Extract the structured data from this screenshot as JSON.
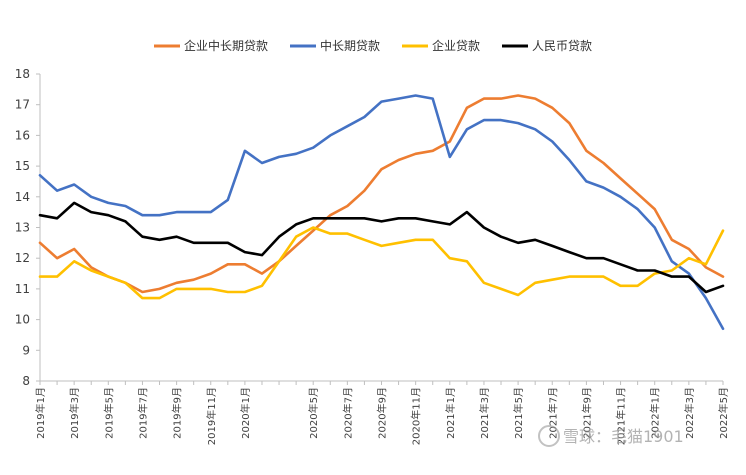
{
  "chart_data": {
    "type": "line",
    "title": "",
    "xlabel": "",
    "ylabel": "",
    "ylim": [
      8,
      18
    ],
    "yticks": [
      "8",
      "9",
      "10",
      "11",
      "12",
      "13",
      "14",
      "15",
      "16",
      "17",
      "18"
    ],
    "grid": false,
    "legend_position": "top",
    "categories": [
      "2019年1月",
      "2019年2月",
      "2019年3月",
      "2019年4月",
      "2019年5月",
      "2019年6月",
      "2019年7月",
      "2019年8月",
      "2019年9月",
      "2019年10月",
      "2019年11月",
      "2019年12月",
      "2020年1月",
      "2020年2月",
      "2020年3月",
      "2020年4月",
      "2020年5月",
      "2020年6月",
      "2020年7月",
      "2020年8月",
      "2020年9月",
      "2020年10月",
      "2020年11月",
      "2020年12月",
      "2021年1月",
      "2021年2月",
      "2021年3月",
      "2021年4月",
      "2021年5月",
      "2021年6月",
      "2021年7月",
      "2021年8月",
      "2021年9月",
      "2021年10月",
      "2021年11月",
      "2021年12月",
      "2022年1月",
      "2022年2月",
      "2022年3月",
      "2022年4月",
      "2022年5月"
    ],
    "x_tick_labels": [
      {
        "i": 0,
        "label": "2019年1月"
      },
      {
        "i": 2,
        "label": "2019年3月"
      },
      {
        "i": 4,
        "label": "2019年5月"
      },
      {
        "i": 6,
        "label": "2019年7月"
      },
      {
        "i": 8,
        "label": "2019年9月"
      },
      {
        "i": 10,
        "label": "2019年11月"
      },
      {
        "i": 12,
        "label": "2020年1月"
      },
      {
        "i": 16,
        "label": "2020年5月"
      },
      {
        "i": 18,
        "label": "2020年7月"
      },
      {
        "i": 20,
        "label": "2020年9月"
      },
      {
        "i": 22,
        "label": "2020年11月"
      },
      {
        "i": 24,
        "label": "2021年1月"
      },
      {
        "i": 26,
        "label": "2021年3月"
      },
      {
        "i": 28,
        "label": "2021年5月"
      },
      {
        "i": 30,
        "label": "2021年7月"
      },
      {
        "i": 32,
        "label": "2021年9月"
      },
      {
        "i": 34,
        "label": "2021年11月"
      },
      {
        "i": 36,
        "label": "2022年1月"
      },
      {
        "i": 38,
        "label": "2022年3月"
      },
      {
        "i": 40,
        "label": "2022年5月"
      }
    ],
    "series": [
      {
        "name": "企业中长期贷款",
        "color": "#ED7D31",
        "values": [
          12.5,
          12.0,
          12.3,
          11.7,
          11.4,
          11.2,
          10.9,
          11.0,
          11.2,
          11.3,
          11.5,
          11.8,
          11.8,
          11.5,
          11.9,
          12.4,
          12.9,
          13.4,
          13.7,
          14.2,
          14.9,
          15.2,
          15.4,
          15.5,
          15.8,
          16.9,
          17.2,
          17.2,
          17.3,
          17.2,
          16.9,
          16.4,
          15.5,
          15.1,
          14.6,
          14.1,
          13.6,
          12.6,
          12.3,
          11.7,
          11.4
        ]
      },
      {
        "name": "中长期贷款",
        "color": "#4472C4",
        "values": [
          14.7,
          14.2,
          14.4,
          14.0,
          13.8,
          13.7,
          13.4,
          13.4,
          13.5,
          13.5,
          13.5,
          13.9,
          15.5,
          15.1,
          15.3,
          15.4,
          15.6,
          16.0,
          16.3,
          16.6,
          17.1,
          17.2,
          17.3,
          17.2,
          15.3,
          16.2,
          16.5,
          16.5,
          16.4,
          16.2,
          15.8,
          15.2,
          14.5,
          14.3,
          14.0,
          13.6,
          13.0,
          11.9,
          11.5,
          10.7,
          9.7
        ]
      },
      {
        "name": "企业贷款",
        "color": "#FFC000",
        "values": [
          11.4,
          11.4,
          11.9,
          11.6,
          11.4,
          11.2,
          10.7,
          10.7,
          11.0,
          11.0,
          11.0,
          10.9,
          10.9,
          11.1,
          11.9,
          12.7,
          13.0,
          12.8,
          12.8,
          12.6,
          12.4,
          12.5,
          12.6,
          12.6,
          12.0,
          11.9,
          11.2,
          11.0,
          10.8,
          11.2,
          11.3,
          11.4,
          11.4,
          11.4,
          11.1,
          11.1,
          11.5,
          11.6,
          12.0,
          11.8,
          12.9
        ]
      },
      {
        "name": "人民币贷款",
        "color": "#000000",
        "values": [
          13.4,
          13.3,
          13.8,
          13.5,
          13.4,
          13.2,
          12.7,
          12.6,
          12.7,
          12.5,
          12.5,
          12.5,
          12.2,
          12.1,
          12.7,
          13.1,
          13.3,
          13.3,
          13.3,
          13.3,
          13.2,
          13.3,
          13.3,
          13.2,
          13.1,
          13.5,
          13.0,
          12.7,
          12.5,
          12.6,
          12.4,
          12.2,
          12.0,
          12.0,
          11.8,
          11.6,
          11.6,
          11.4,
          11.4,
          10.9,
          11.1
        ]
      }
    ]
  },
  "watermark": {
    "text": "雪球：毛猫1901"
  }
}
